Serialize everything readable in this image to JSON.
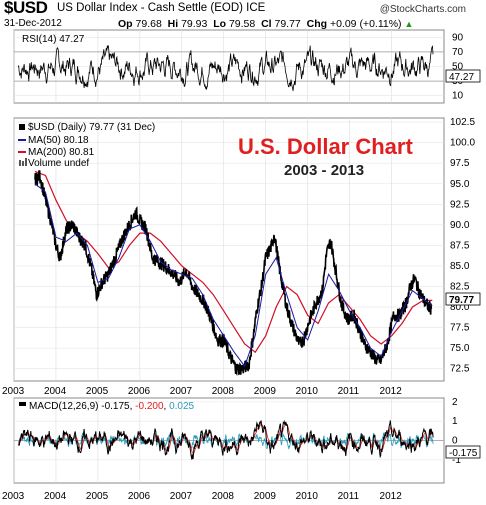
{
  "header": {
    "ticker": "$USD",
    "name": "US Dollar Index - Cash Settle (EOD) ICE",
    "date": "31-Dec-2012",
    "op_label": "Op",
    "op": "79.68",
    "hi_label": "Hi",
    "hi": "79.93",
    "lo_label": "Lo",
    "lo": "79.58",
    "cl_label": "Cl",
    "cl": "79.77",
    "chg_label": "Chg",
    "chg": "+0.09 (+0.11%)",
    "logo": "@StockCharts.com"
  },
  "colors": {
    "price": "#000000",
    "ma50": "#1a1aa0",
    "ma200": "#d0102a",
    "macd": "#000000",
    "signal": "#e02020",
    "hist": "#2a9ab8",
    "title": "#e02020"
  },
  "chart_data": [
    {
      "type": "line",
      "panel": "rsi",
      "legend": "RSI(14) 47.27",
      "current": "47.27",
      "ylim": [
        0,
        100
      ],
      "yticks": [
        10,
        30,
        50,
        70,
        90
      ],
      "ytick_labels": [
        "10",
        "30",
        "50",
        "70",
        "90"
      ],
      "ref_lines": [
        30,
        70
      ]
    },
    {
      "type": "line",
      "panel": "price",
      "title": "U.S. Dollar Chart",
      "subtitle": "2003  -  2013",
      "legend": [
        {
          "label": "$USD (Daily) 79.77 (31 Dec)",
          "color": "#000000"
        },
        {
          "label": "MA(50) 80.18",
          "color": "#1a1aa0"
        },
        {
          "label": "MA(200) 80.81",
          "color": "#d0102a"
        },
        {
          "label": "Volume undef",
          "color": "#555555"
        }
      ],
      "ylim": [
        71,
        103
      ],
      "yticks": [
        72.5,
        75.0,
        77.5,
        80.0,
        82.5,
        85.0,
        87.5,
        90.0,
        92.5,
        95.0,
        97.5,
        100.0,
        102.5
      ],
      "ytick_labels": [
        "72.5",
        "75.0",
        "77.5",
        "80.0",
        "82.5",
        "85.0",
        "87.5",
        "90.0",
        "92.5",
        "95.0",
        "97.5",
        "100.0",
        "102.5"
      ],
      "last_price": "79.77",
      "x_labels": [
        "2003",
        "2004",
        "2005",
        "2006",
        "2007",
        "2008",
        "2009",
        "2010",
        "2011",
        "2012"
      ],
      "series": [
        {
          "name": "$USD (Daily)",
          "x": [
            2003.5,
            2003.62,
            2003.75,
            2003.88,
            2004.0,
            2004.1,
            2004.25,
            2004.4,
            2004.55,
            2004.7,
            2004.85,
            2004.97,
            2005.1,
            2005.25,
            2005.45,
            2005.6,
            2005.8,
            2005.9,
            2006.0,
            2006.15,
            2006.3,
            2006.45,
            2006.6,
            2006.8,
            2006.95,
            2007.1,
            2007.25,
            2007.4,
            2007.55,
            2007.7,
            2007.85,
            2008.0,
            2008.15,
            2008.3,
            2008.45,
            2008.6,
            2008.72,
            2008.8,
            2008.9,
            2009.0,
            2009.15,
            2009.2,
            2009.35,
            2009.5,
            2009.65,
            2009.8,
            2009.9,
            2010.05,
            2010.2,
            2010.35,
            2010.45,
            2010.55,
            2010.65,
            2010.8,
            2010.95,
            2011.1,
            2011.25,
            2011.35,
            2011.5,
            2011.65,
            2011.75,
            2011.9,
            2012.05,
            2012.2,
            2012.35,
            2012.45,
            2012.55,
            2012.65,
            2012.8,
            2012.95
          ],
          "values": [
            95.5,
            96.0,
            93.0,
            90.5,
            87.5,
            86.0,
            89.5,
            90.0,
            88.5,
            87.5,
            84.5,
            81.5,
            83.0,
            84.0,
            86.5,
            88.5,
            90.5,
            91.5,
            90.5,
            89.5,
            86.0,
            85.5,
            85.0,
            84.0,
            83.0,
            84.5,
            82.5,
            81.5,
            80.5,
            78.5,
            76.0,
            76.0,
            74.0,
            72.5,
            72.5,
            73.0,
            77.0,
            80.0,
            82.5,
            86.0,
            87.5,
            89.0,
            84.0,
            80.0,
            77.5,
            75.5,
            76.0,
            78.5,
            80.5,
            82.0,
            86.5,
            88.0,
            85.0,
            80.5,
            78.5,
            79.0,
            77.0,
            75.5,
            74.5,
            73.5,
            73.5,
            75.5,
            79.0,
            79.0,
            80.5,
            82.5,
            83.5,
            82.0,
            80.5,
            79.77
          ]
        },
        {
          "name": "MA(50)",
          "x": [
            2003.5,
            2003.75,
            2004.0,
            2004.25,
            2004.5,
            2004.75,
            2005.0,
            2005.25,
            2005.5,
            2005.75,
            2006.0,
            2006.25,
            2006.5,
            2006.75,
            2007.0,
            2007.25,
            2007.5,
            2007.75,
            2008.0,
            2008.25,
            2008.5,
            2008.75,
            2009.0,
            2009.25,
            2009.5,
            2009.75,
            2010.0,
            2010.25,
            2010.5,
            2010.75,
            2011.0,
            2011.25,
            2011.5,
            2011.75,
            2012.0,
            2012.25,
            2012.5,
            2012.75,
            2012.97
          ],
          "values": [
            95.0,
            94.0,
            88.5,
            88.0,
            89.0,
            87.5,
            83.0,
            83.5,
            86.0,
            89.5,
            90.0,
            88.0,
            85.5,
            84.5,
            84.0,
            83.5,
            81.5,
            78.5,
            76.5,
            74.5,
            72.8,
            76.5,
            84.0,
            86.0,
            81.5,
            77.5,
            76.0,
            79.5,
            84.0,
            82.0,
            79.5,
            77.5,
            75.0,
            74.0,
            77.0,
            79.5,
            82.0,
            81.0,
            80.18
          ]
        },
        {
          "name": "MA(200)",
          "x": [
            2003.5,
            2003.75,
            2004.0,
            2004.25,
            2004.5,
            2004.75,
            2005.0,
            2005.25,
            2005.5,
            2005.75,
            2006.0,
            2006.25,
            2006.5,
            2006.75,
            2007.0,
            2007.25,
            2007.5,
            2007.75,
            2008.0,
            2008.25,
            2008.5,
            2008.75,
            2009.0,
            2009.25,
            2009.5,
            2009.75,
            2010.0,
            2010.25,
            2010.5,
            2010.75,
            2011.0,
            2011.25,
            2011.5,
            2011.75,
            2012.0,
            2012.25,
            2012.5,
            2012.75,
            2012.97
          ],
          "values": [
            96.5,
            96.0,
            93.0,
            90.5,
            89.0,
            88.0,
            86.5,
            84.8,
            85.5,
            87.5,
            89.0,
            89.0,
            88.0,
            86.5,
            85.0,
            84.0,
            83.0,
            81.5,
            79.5,
            77.5,
            75.5,
            74.5,
            76.5,
            80.0,
            82.5,
            81.5,
            79.0,
            78.0,
            80.5,
            81.5,
            80.0,
            78.5,
            76.5,
            75.5,
            76.5,
            78.0,
            80.0,
            80.8,
            80.81
          ]
        }
      ]
    },
    {
      "type": "line",
      "panel": "macd",
      "legend_prefix": "MACD(12,26,9)",
      "macd_value": "-0.175",
      "signal_value": "-0.200",
      "hist_value": "0.025",
      "current": "-0.175",
      "ylim": [
        -2.2,
        2.2
      ],
      "yticks": [
        -1,
        0,
        1,
        2
      ],
      "ytick_labels": [
        "-1",
        "0",
        "1",
        "2"
      ],
      "x_labels": [
        "2003",
        "2004",
        "2005",
        "2006",
        "2007",
        "2008",
        "2009",
        "2010",
        "2011",
        "2012"
      ]
    }
  ]
}
